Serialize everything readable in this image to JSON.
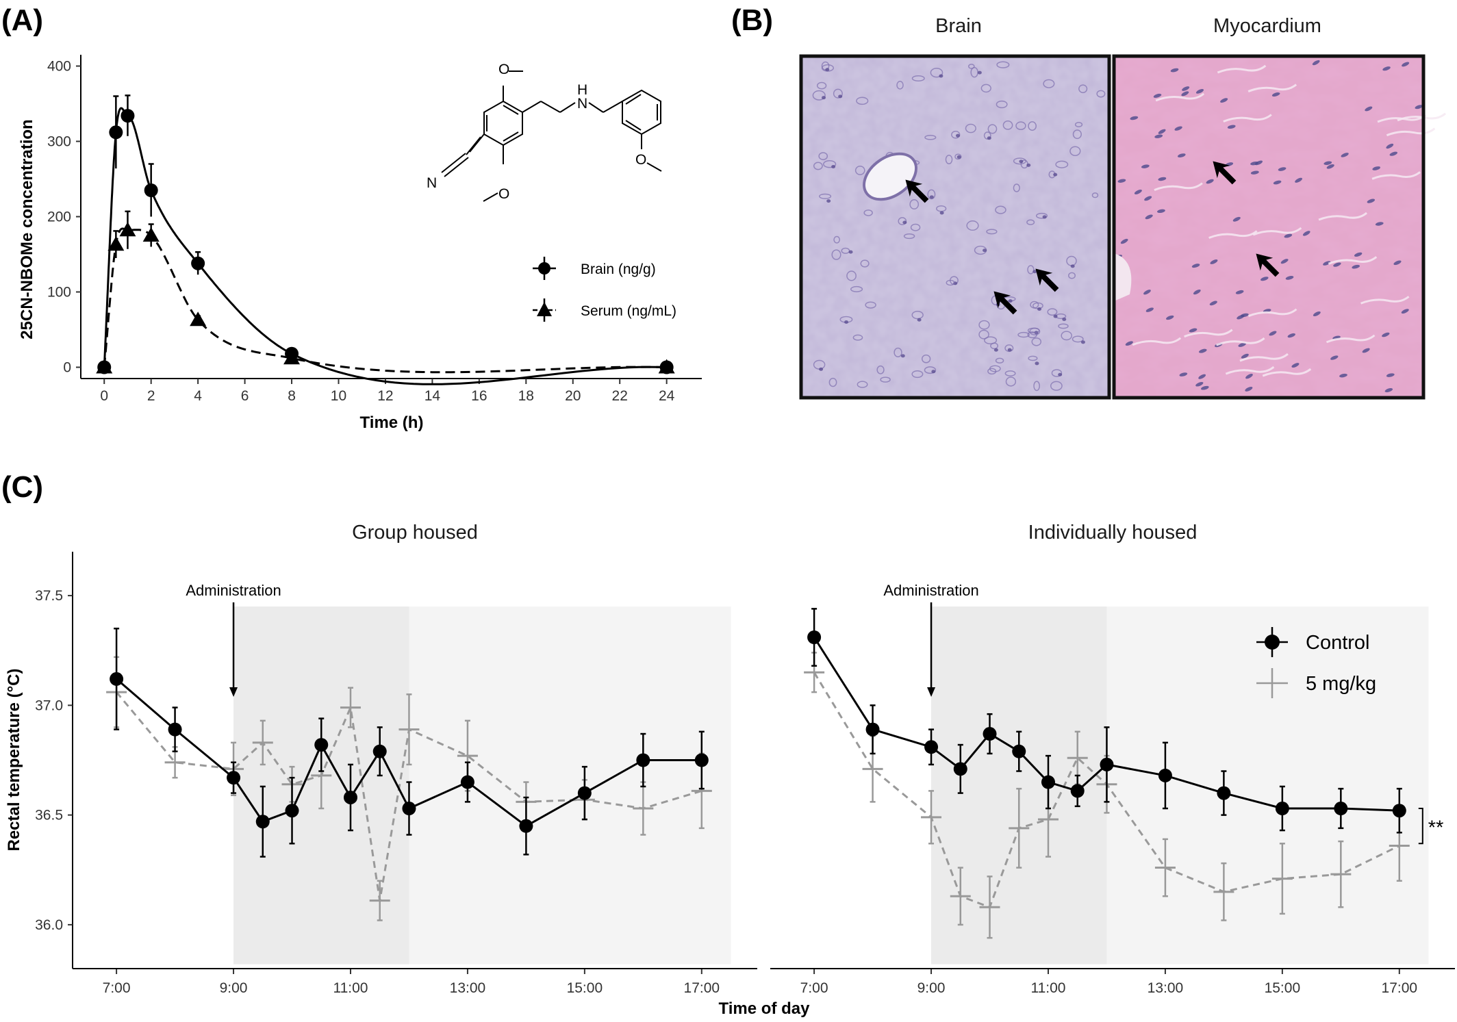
{
  "panel_labels": {
    "a": "(A)",
    "b": "(B)",
    "c": "(C)"
  },
  "colors": {
    "control": "#000000",
    "treated": "#999999",
    "shade_dark": "#ebebeb",
    "shade_light": "#f4f4f4",
    "he_brain": "#c9bfdc",
    "he_myo": "#e3a9cc"
  },
  "chemical": {
    "atoms": [
      "O",
      "H",
      "N",
      "O",
      "N",
      "O"
    ]
  },
  "histology": {
    "titles": [
      "Brain",
      "Myocardium"
    ],
    "arrow_icon": "arrow-icon"
  },
  "chart_data": [
    {
      "type": "line",
      "panel": "(A)",
      "xlabel": "Time (h)",
      "ylabel": "25CN-NBOMe concentration",
      "xlim": [
        -1,
        25.5
      ],
      "ylim": [
        -15,
        415
      ],
      "xticks": [
        0,
        2,
        4,
        6,
        8,
        10,
        12,
        14,
        16,
        18,
        20,
        22,
        24
      ],
      "yticks": [
        0,
        100,
        200,
        300,
        400
      ],
      "legend_position": "right",
      "series": [
        {
          "name": "Brain (ng/g)",
          "marker": "circle",
          "line": "solid",
          "x": [
            0,
            0.5,
            1,
            2,
            4,
            8,
            24
          ],
          "y": [
            0,
            312,
            334,
            235,
            138,
            18,
            0
          ],
          "err": [
            0,
            48,
            27,
            35,
            15,
            5,
            0
          ]
        },
        {
          "name": "Serum (ng/mL)",
          "marker": "triangle",
          "line": "dashed",
          "x": [
            0,
            0.5,
            1,
            2,
            4,
            8,
            24
          ],
          "y": [
            0,
            163,
            182,
            175,
            63,
            12,
            0
          ],
          "err": [
            0,
            18,
            25,
            15,
            5,
            3,
            0
          ]
        }
      ]
    },
    {
      "type": "line",
      "panel": "(C)",
      "xlabel": "Time of day",
      "ylabel": "Rectal temperature (°C)",
      "ylim": [
        35.8,
        37.7
      ],
      "yticks": [
        36.0,
        36.5,
        37.0,
        37.5
      ],
      "xtick_labels": [
        "7:00",
        "9:00",
        "11:00",
        "13:00",
        "15:00",
        "17:00"
      ],
      "xticks_hours": [
        7,
        9,
        11,
        13,
        15,
        17
      ],
      "legend_position": "top-right",
      "series_names": [
        "Control",
        "5 mg/kg"
      ],
      "facets": [
        {
          "title": "Group housed",
          "annotation": "Administration",
          "annotation_x": 9,
          "significance": "",
          "series": [
            {
              "name": "Control",
              "x": [
                7,
                8,
                9,
                9.5,
                10,
                10.5,
                11,
                11.5,
                12,
                13,
                14,
                15,
                16,
                17
              ],
              "y": [
                37.12,
                36.89,
                36.67,
                36.47,
                36.52,
                36.82,
                36.58,
                36.79,
                36.53,
                36.65,
                36.45,
                36.6,
                36.75,
                36.75
              ],
              "err": [
                0.23,
                0.1,
                0.07,
                0.16,
                0.15,
                0.12,
                0.15,
                0.11,
                0.12,
                0.09,
                0.13,
                0.12,
                0.12,
                0.13
              ]
            },
            {
              "name": "5 mg/kg",
              "x": [
                7,
                8,
                9,
                9.5,
                10,
                10.5,
                11,
                11.5,
                12,
                13,
                14,
                15,
                16,
                17
              ],
              "y": [
                37.06,
                36.74,
                36.71,
                36.83,
                36.64,
                36.68,
                36.99,
                36.11,
                36.89,
                36.77,
                36.56,
                36.57,
                36.53,
                36.61
              ],
              "err": [
                0.16,
                0.07,
                0.12,
                0.1,
                0.08,
                0.15,
                0.09,
                0.09,
                0.16,
                0.16,
                0.09,
                0.09,
                0.12,
                0.17
              ]
            }
          ]
        },
        {
          "title": "Individually housed",
          "annotation": "Administration",
          "annotation_x": 9,
          "significance": "**",
          "series": [
            {
              "name": "Control",
              "x": [
                7,
                8,
                9,
                9.5,
                10,
                10.5,
                11,
                11.5,
                12,
                13,
                14,
                15,
                16,
                17
              ],
              "y": [
                37.31,
                36.89,
                36.81,
                36.71,
                36.87,
                36.79,
                36.65,
                36.61,
                36.73,
                36.68,
                36.6,
                36.53,
                36.53,
                36.52
              ],
              "err": [
                0.13,
                0.11,
                0.08,
                0.11,
                0.09,
                0.09,
                0.12,
                0.07,
                0.17,
                0.15,
                0.1,
                0.1,
                0.09,
                0.1
              ]
            },
            {
              "name": "5 mg/kg",
              "x": [
                7,
                8,
                9,
                9.5,
                10,
                10.5,
                11,
                11.5,
                12,
                13,
                14,
                15,
                16,
                17
              ],
              "y": [
                37.15,
                36.71,
                36.49,
                36.13,
                36.08,
                36.44,
                36.48,
                36.76,
                36.64,
                36.26,
                36.15,
                36.21,
                36.23,
                36.36
              ],
              "err": [
                0.09,
                0.15,
                0.12,
                0.13,
                0.14,
                0.18,
                0.17,
                0.12,
                0.13,
                0.13,
                0.13,
                0.16,
                0.15,
                0.16
              ]
            }
          ]
        }
      ]
    }
  ]
}
